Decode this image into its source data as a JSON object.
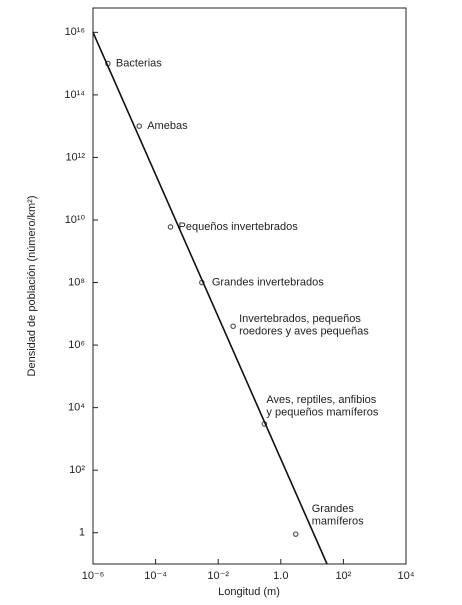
{
  "chart_data": {
    "type": "scatter",
    "x_label": "Longitud (m)",
    "y_label": "Densidad de población (número/km²)",
    "log_x": true,
    "log_y": true,
    "xlim": [
      1e-06,
      10000
    ],
    "ylim": [
      0.1,
      60000000000000000
    ],
    "xticks": [
      {
        "value": 1e-06,
        "label": "10⁻⁶"
      },
      {
        "value": 0.0001,
        "label": "10⁻⁴"
      },
      {
        "value": 0.01,
        "label": "10⁻²"
      },
      {
        "value": 1,
        "label": "1.0"
      },
      {
        "value": 100,
        "label": "10²"
      },
      {
        "value": 10000,
        "label": "10⁴"
      }
    ],
    "yticks": [
      1,
      {
        "value": 100,
        "label": "10²"
      },
      {
        "value": 10000,
        "label": "10⁴"
      },
      {
        "value": 1000000,
        "label": "10⁶"
      },
      {
        "value": 100000000,
        "label": "10⁸"
      },
      {
        "value": 10000000000,
        "label": "10¹⁰"
      },
      {
        "value": 1000000000000,
        "label": "10¹²"
      },
      {
        "value": 100000000000000,
        "label": "10¹⁴"
      },
      {
        "value": 10000000000000000,
        "label": "10¹⁶"
      }
    ],
    "series": [
      {
        "type": "scatter",
        "color": "#555555",
        "x": [
          3e-06,
          3e-05,
          0.0003,
          0.003,
          0.03,
          0.3,
          3
        ],
        "values": [
          1000000000000000,
          10000000000000,
          6000000000,
          100000000,
          4000000,
          3000,
          0.9
        ],
        "labels": [
          [
            "Bacterias"
          ],
          [
            "Amebas"
          ],
          [
            "Pequeños invertebrados"
          ],
          [
            "Grandes invertebrados"
          ],
          [
            "Invertebrados, pequeños",
            "roedores y aves pequeñas"
          ],
          [
            "Aves, reptiles, anfibios",
            "y pequeños mamíferos"
          ],
          [
            "Grandes",
            "mamíferos"
          ]
        ]
      },
      {
        "type": "line",
        "color": "#111111",
        "x": [
          1e-06,
          30
        ],
        "values": [
          10000000000000000,
          0.1
        ]
      }
    ]
  }
}
